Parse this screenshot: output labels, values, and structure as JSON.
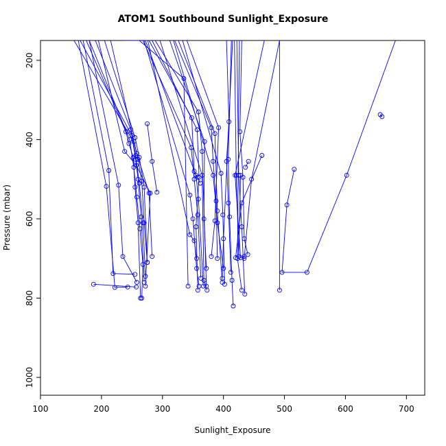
{
  "chart_data": {
    "type": "line",
    "title": "ATOM1 Southbound Sunlight_Exposure",
    "xlabel": "Sunlight_Exposure",
    "ylabel": "Pressure (mbar)",
    "xlim": [
      100,
      730
    ],
    "ylim": [
      1045,
      150
    ],
    "y_reversed": true,
    "x_ticks": [
      100,
      200,
      300,
      400,
      500,
      600,
      700
    ],
    "y_ticks": [
      200,
      400,
      600,
      800,
      1000
    ],
    "grid": false,
    "line_color": "#0000ff",
    "series": [
      {
        "points": [
          [
            155,
            150
          ],
          [
            243,
            380
          ],
          [
            253,
            405
          ],
          [
            260,
            450
          ],
          [
            266,
            505
          ],
          [
            270,
            610
          ],
          [
            275,
            710
          ]
        ]
      },
      {
        "points": [
          [
            165,
            150
          ],
          [
            250,
            390
          ],
          [
            256,
            440
          ],
          [
            262,
            510
          ],
          [
            268,
            610
          ],
          [
            272,
            745
          ]
        ]
      },
      {
        "points": [
          [
            180,
            150
          ],
          [
            246,
            400
          ],
          [
            253,
            470
          ],
          [
            258,
            545
          ],
          [
            263,
            625
          ],
          [
            268,
            715
          ],
          [
            266,
            800
          ]
        ]
      },
      {
        "points": [
          [
            175,
            150
          ],
          [
            240,
            380
          ],
          [
            245,
            410
          ],
          [
            252,
            445
          ],
          [
            255,
            520
          ],
          [
            260,
            610
          ],
          [
            264,
            800
          ]
        ]
      },
      {
        "points": [
          [
            190,
            150
          ],
          [
            248,
            375
          ],
          [
            256,
            450
          ],
          [
            260,
            500
          ],
          [
            265,
            595
          ],
          [
            270,
            760
          ]
        ]
      },
      {
        "points": [
          [
            205,
            150
          ],
          [
            255,
            395
          ],
          [
            262,
            445
          ],
          [
            270,
            520
          ],
          [
            275,
            710
          ]
        ]
      },
      {
        "points": [
          [
            215,
            150
          ],
          [
            258,
            435
          ],
          [
            278,
            535
          ],
          [
            283,
            695
          ]
        ]
      },
      {
        "points": [
          [
            195,
            150
          ],
          [
            238,
            430
          ],
          [
            257,
            465
          ],
          [
            280,
            535
          ],
          [
            272,
            770
          ]
        ]
      },
      {
        "points": [
          [
            170,
            150
          ],
          [
            212,
            478
          ],
          [
            219,
            738
          ],
          [
            255,
            740
          ]
        ]
      },
      {
        "points": [
          [
            162,
            150
          ],
          [
            208,
            518
          ],
          [
            222,
            773
          ],
          [
            243,
            772
          ]
        ]
      },
      {
        "points": [
          [
            180,
            150
          ],
          [
            228,
            515
          ],
          [
            235,
            695
          ],
          [
            258,
            760
          ]
        ]
      },
      {
        "points": [
          [
            275,
            360
          ],
          [
            283,
            455
          ],
          [
            291,
            533
          ]
        ]
      },
      {
        "points": [
          [
            187,
            765
          ],
          [
            257,
            772
          ]
        ]
      },
      {
        "points": [
          [
            238,
            150
          ],
          [
            262,
            150
          ],
          [
            335,
            246
          ],
          [
            342,
            770
          ]
        ]
      },
      {
        "points": [
          [
            270,
            150
          ],
          [
            345,
            540
          ],
          [
            350,
            600
          ],
          [
            356,
            725
          ],
          [
            360,
            770
          ]
        ]
      },
      {
        "points": [
          [
            268,
            150
          ],
          [
            347,
            420
          ],
          [
            352,
            500
          ],
          [
            358,
            590
          ],
          [
            363,
            750
          ]
        ]
      },
      {
        "points": [
          [
            272,
            150
          ],
          [
            355,
            490
          ],
          [
            359,
            550
          ],
          [
            367,
            770
          ]
        ]
      },
      {
        "points": [
          [
            276,
            150
          ],
          [
            345,
            640
          ],
          [
            352,
            655
          ],
          [
            356,
            700
          ]
        ]
      },
      {
        "points": [
          [
            278,
            150
          ],
          [
            348,
            345
          ],
          [
            352,
            480
          ],
          [
            357,
            495
          ],
          [
            362,
            510
          ]
        ]
      },
      {
        "points": [
          [
            283,
            150
          ],
          [
            357,
            375
          ],
          [
            360,
            495
          ],
          [
            355,
            620
          ],
          [
            358,
            780
          ]
        ]
      },
      {
        "points": [
          [
            288,
            150
          ],
          [
            359,
            330
          ],
          [
            365,
            430
          ],
          [
            372,
            770
          ]
        ]
      },
      {
        "points": [
          [
            296,
            150
          ],
          [
            365,
            490
          ],
          [
            368,
            755
          ],
          [
            373,
            780
          ]
        ]
      },
      {
        "points": [
          [
            312,
            150
          ],
          [
            369,
            405
          ],
          [
            368,
            600
          ],
          [
            372,
            725
          ]
        ]
      },
      {
        "points": [
          [
            320,
            150
          ],
          [
            380,
            370
          ],
          [
            383,
            455
          ],
          [
            388,
            555
          ],
          [
            390,
            700
          ]
        ]
      },
      {
        "points": [
          [
            326,
            150
          ],
          [
            386,
            385
          ],
          [
            390,
            580
          ],
          [
            398,
            760
          ]
        ]
      },
      {
        "points": [
          [
            340,
            150
          ],
          [
            392,
            370
          ],
          [
            386,
            605
          ],
          [
            380,
            695
          ]
        ]
      },
      {
        "points": [
          [
            318,
            150
          ],
          [
            383,
            490
          ],
          [
            390,
            610
          ],
          [
            400,
            725
          ]
        ]
      },
      {
        "points": [
          [
            333,
            150
          ],
          [
            396,
            485
          ],
          [
            399,
            590
          ],
          [
            402,
            765
          ]
        ]
      },
      {
        "points": [
          [
            405,
            150
          ],
          [
            409,
            355
          ],
          [
            405,
            455
          ],
          [
            408,
            560
          ],
          [
            412,
            735
          ]
        ]
      },
      {
        "points": [
          [
            418,
            150
          ],
          [
            421,
            490
          ],
          [
            425,
            695
          ],
          [
            428,
            490
          ]
        ]
      },
      {
        "points": [
          [
            413,
            150
          ],
          [
            408,
            450
          ],
          [
            410,
            595
          ],
          [
            414,
            755
          ],
          [
            416,
            820
          ]
        ]
      },
      {
        "points": [
          [
            430,
            150
          ],
          [
            427,
            380
          ],
          [
            432,
            495
          ],
          [
            434,
            650
          ],
          [
            440,
            690
          ]
        ]
      },
      {
        "points": [
          [
            422,
            150
          ],
          [
            425,
            490
          ],
          [
            430,
            620
          ],
          [
            435,
            790
          ]
        ]
      },
      {
        "points": [
          [
            426,
            150
          ],
          [
            423,
            700
          ],
          [
            430,
            780
          ]
        ]
      },
      {
        "points": [
          [
            467,
            150
          ],
          [
            419,
            490
          ],
          [
            428,
            698
          ],
          [
            434,
            695
          ]
        ]
      },
      {
        "points": [
          [
            415,
            150
          ],
          [
            400,
            650
          ],
          [
            398,
            750
          ]
        ]
      },
      {
        "points": [
          [
            492,
            150
          ],
          [
            446,
            500
          ],
          [
            434,
            700
          ]
        ]
      },
      {
        "points": [
          [
            463,
            440
          ],
          [
            430,
            560
          ],
          [
            420,
            698
          ]
        ]
      },
      {
        "points": [
          [
            441,
            455
          ],
          [
            436,
            470
          ]
        ]
      },
      {
        "points": [
          [
            492,
            150
          ],
          [
            492,
            780
          ]
        ]
      },
      {
        "points": [
          [
            516,
            475
          ],
          [
            504,
            565
          ],
          [
            496,
            735
          ],
          [
            537,
            735
          ],
          [
            602,
            490
          ],
          [
            682,
            150
          ]
        ]
      },
      {
        "points": [
          [
            657,
            337
          ],
          [
            660,
            342
          ]
        ]
      }
    ]
  }
}
